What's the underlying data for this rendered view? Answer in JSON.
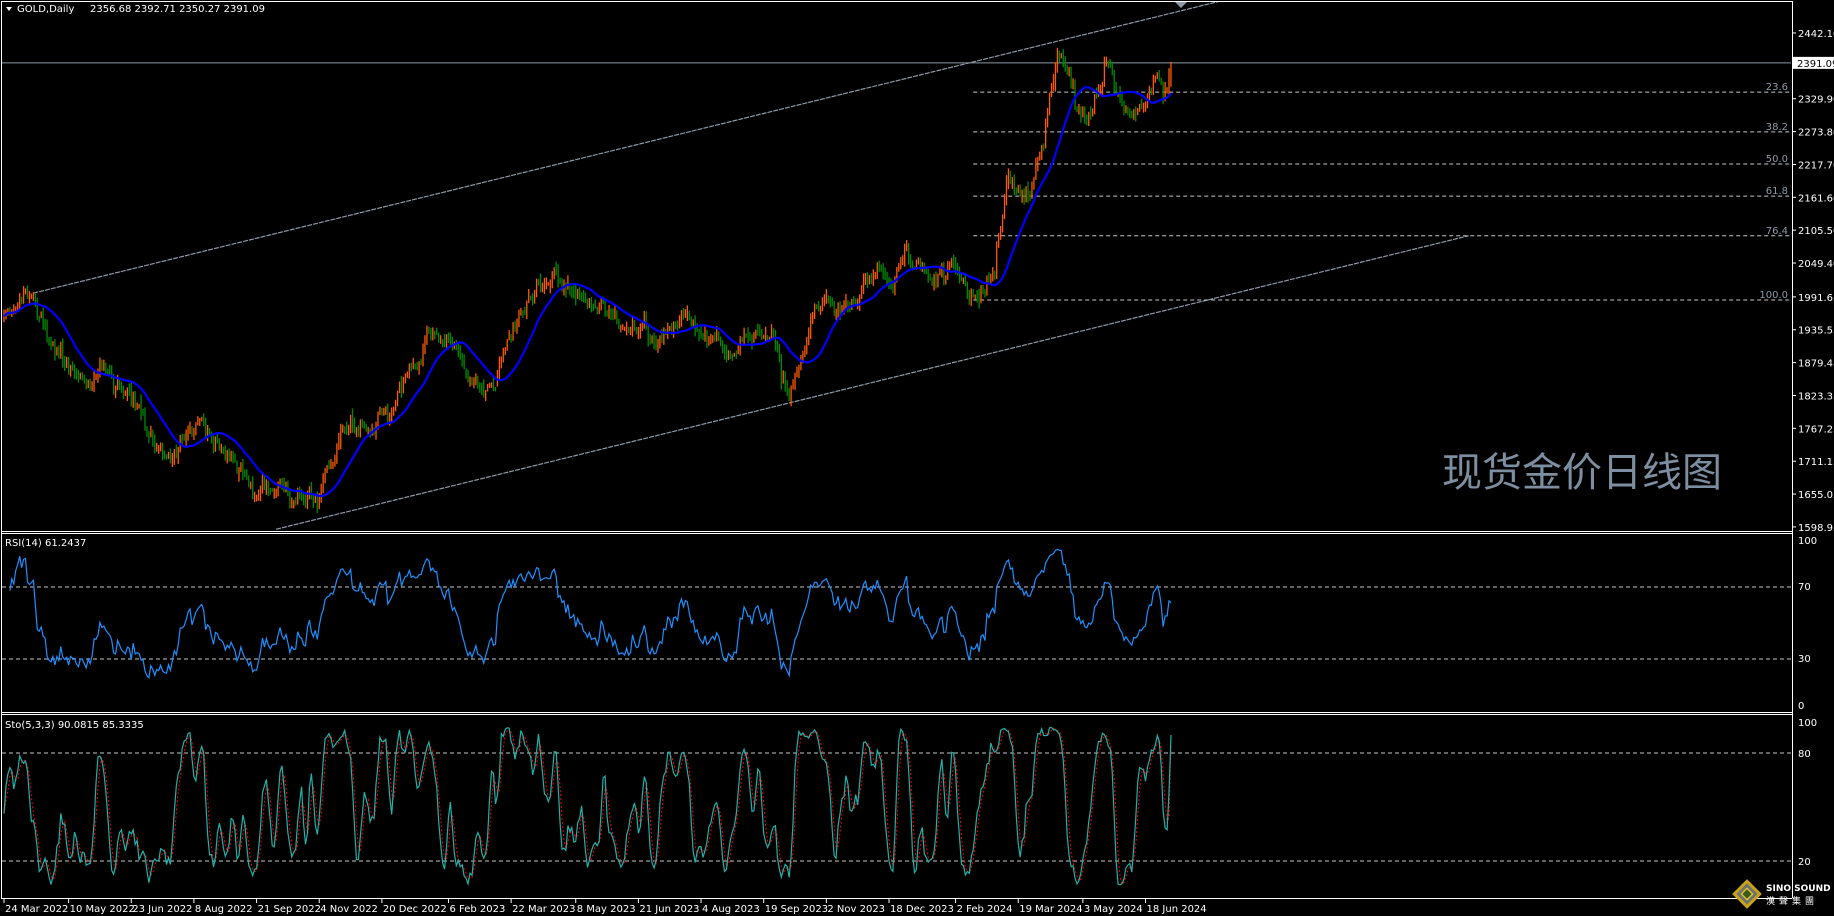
{
  "header": {
    "menu_icon": "triangle-down-icon",
    "symbol_timeframe": "GOLD,Daily",
    "ohlc": "2356.68 2392.71 2350.27 2391.09"
  },
  "watermark": "现货金价日线图",
  "logo": {
    "text_en": "SINO SOUND",
    "text_cn": "漢聲集團"
  },
  "colors": {
    "background": "#000000",
    "bull_bar": "#ff5a00",
    "bear_bar": "#008a00",
    "moving_average": "#0000ff",
    "rsi_line": "#1e90ff",
    "sto_main": "#20b2aa",
    "sto_signal": "#ff0000",
    "objects": "#8c9aa8",
    "axis": "#ffffff"
  },
  "chart_data": [
    {
      "type": "bar",
      "symbol": "GOLD",
      "timeframe": "Daily",
      "ohlc_last": {
        "open": 2356.68,
        "high": 2392.71,
        "low": 2350.27,
        "close": 2391.09
      },
      "ylim": [
        1592.0,
        2498.4
      ],
      "y_ticks": [
        "2442.10",
        "2329.90",
        "2273.80",
        "2217.70",
        "2161.60",
        "2105.50",
        "2049.40",
        "1991.65",
        "1935.55",
        "1879.45",
        "1823.35",
        "1767.25",
        "1711.15",
        "1655.05",
        "1598.95"
      ],
      "current_price_label": "2391.09",
      "x_ticks": [
        "24 Mar 2022",
        "10 May 2022",
        "23 Jun 2022",
        "8 Aug 2022",
        "21 Sep 2022",
        "4 Nov 2022",
        "20 Dec 2022",
        "6 Feb 2023",
        "22 Mar 2023",
        "8 May 2023",
        "21 Jun 2023",
        "4 Aug 2023",
        "19 Sep 2023",
        "2 Nov 2023",
        "18 Dec 2023",
        "2 Feb 2024",
        "19 Mar 2024",
        "3 May 2024",
        "18 Jun 2024"
      ],
      "close_keypoints": [
        [
          "2022-03-24",
          1957
        ],
        [
          "2022-04-14",
          1986
        ],
        [
          "2022-04-22",
          1935
        ],
        [
          "2022-05-16",
          1855
        ],
        [
          "2022-06-10",
          1850
        ],
        [
          "2022-06-28",
          1827
        ],
        [
          "2022-07-12",
          1742
        ],
        [
          "2022-07-22",
          1718
        ],
        [
          "2022-08-01",
          1764
        ],
        [
          "2022-08-12",
          1781
        ],
        [
          "2022-08-26",
          1735
        ],
        [
          "2022-09-21",
          1662
        ],
        [
          "2022-10-03",
          1674
        ],
        [
          "2022-10-21",
          1650
        ],
        [
          "2022-11-03",
          1640
        ],
        [
          "2022-11-11",
          1701
        ],
        [
          "2022-11-22",
          1770
        ],
        [
          "2022-12-09",
          1759
        ],
        [
          "2022-12-28",
          1793
        ],
        [
          "2023-01-11",
          1872
        ],
        [
          "2023-01-27",
          1930
        ],
        [
          "2023-02-13",
          1884
        ],
        [
          "2023-02-27",
          1838
        ],
        [
          "2023-03-08",
          1821
        ],
        [
          "2023-03-17",
          1918
        ],
        [
          "2023-04-04",
          1991
        ],
        [
          "2023-04-21",
          2025
        ],
        [
          "2023-05-05",
          2003
        ],
        [
          "2023-05-16",
          1986
        ],
        [
          "2023-05-31",
          1957
        ],
        [
          "2023-06-21",
          1947
        ],
        [
          "2023-07-03",
          1913
        ],
        [
          "2023-07-19",
          1964
        ],
        [
          "2023-08-11",
          1935
        ],
        [
          "2023-08-24",
          1901
        ],
        [
          "2023-09-05",
          1923
        ],
        [
          "2023-09-25",
          1930
        ],
        [
          "2023-10-06",
          1838
        ],
        [
          "2023-10-18",
          1889
        ],
        [
          "2023-10-25",
          1974
        ],
        [
          "2023-11-03",
          1991
        ],
        [
          "2023-11-20",
          1969
        ],
        [
          "2023-12-01",
          2020
        ],
        [
          "2023-12-07",
          2049
        ],
        [
          "2023-12-18",
          2003
        ],
        [
          "2023-12-29",
          2072
        ],
        [
          "2024-01-10",
          2038
        ],
        [
          "2024-01-22",
          2032
        ],
        [
          "2024-02-02",
          2043
        ],
        [
          "2024-02-15",
          1991
        ],
        [
          "2024-03-01",
          2032
        ],
        [
          "2024-03-08",
          2150
        ],
        [
          "2024-03-14",
          2179
        ],
        [
          "2024-03-20",
          2162
        ],
        [
          "2024-03-29",
          2191
        ],
        [
          "2024-04-08",
          2288
        ],
        [
          "2024-04-11",
          2345
        ],
        [
          "2024-04-16",
          2396
        ],
        [
          "2024-04-23",
          2384
        ],
        [
          "2024-04-29",
          2328
        ],
        [
          "2024-05-07",
          2311
        ],
        [
          "2024-05-15",
          2357
        ],
        [
          "2024-05-22",
          2408
        ],
        [
          "2024-05-27",
          2367
        ],
        [
          "2024-05-31",
          2345
        ],
        [
          "2024-06-07",
          2333
        ],
        [
          "2024-06-14",
          2311
        ],
        [
          "2024-06-19",
          2328
        ],
        [
          "2024-06-26",
          2350
        ],
        [
          "2024-07-01",
          2316
        ],
        [
          "2024-07-03",
          2333
        ],
        [
          "2024-07-05",
          2391.09
        ]
      ],
      "moving_average": {
        "period": 21
      },
      "horizontal_line": {
        "price": 2391.09
      },
      "fibonacci": {
        "high": 2450.7,
        "low": 1986.3,
        "start_date": "2024-02-15",
        "levels": [
          {
            "label": "23.6",
            "price": 2341.1
          },
          {
            "label": "38.2",
            "price": 2273.3
          },
          {
            "label": "50.0",
            "price": 2218.5
          },
          {
            "label": "61.8",
            "price": 2163.7
          },
          {
            "label": "76.4",
            "price": 2095.9
          },
          {
            "label": "100.0",
            "price": 1986.3
          }
        ]
      },
      "trendlines": [
        {
          "from": [
            "2022-04-14",
            1998
          ],
          "to": [
            "2024-08-13",
            2498
          ]
        },
        {
          "from": [
            "2022-10-05",
            1595
          ],
          "to": [
            "2025-02-04",
            2096
          ]
        }
      ]
    },
    {
      "type": "line",
      "indicator": "RSI",
      "label": "RSI(14) 61.2437",
      "period": 14,
      "last_value": 61.2437,
      "ylim": [
        0,
        100
      ],
      "levels": [
        70,
        30
      ],
      "y_ticks": [
        "100",
        "70",
        "30",
        "0"
      ]
    },
    {
      "type": "line",
      "indicator": "Stochastic",
      "label": "Sto(5,3,3) 90.0815 85.3335",
      "params": [
        5,
        3,
        3
      ],
      "main_last": 90.0815,
      "signal_last": 85.3335,
      "ylim": [
        0,
        100
      ],
      "levels": [
        80,
        20
      ],
      "y_ticks": [
        "100",
        "80",
        "20"
      ]
    }
  ]
}
